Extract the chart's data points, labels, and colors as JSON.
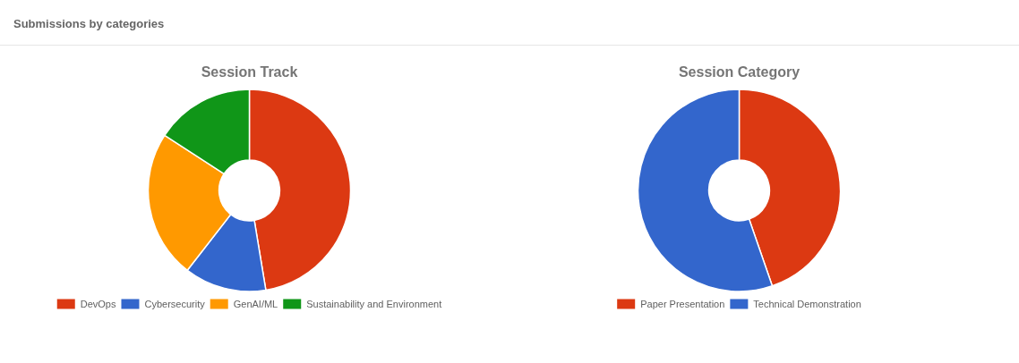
{
  "chart_data": [
    {
      "type": "donut",
      "title": "Session Track",
      "annotations": [
        "Submissions by categories"
      ],
      "categories": [
        "DevOps",
        "Cybersecurity",
        "GenAI/ML",
        "Sustainability and Environment"
      ],
      "values": [
        47.4,
        13.1,
        23.7,
        15.8
      ],
      "colors": [
        "#dc3912",
        "#3366cc",
        "#ff9900",
        "#109618"
      ],
      "legend": "bottom"
    },
    {
      "type": "donut",
      "title": "Session Category",
      "categories": [
        "Paper Presentation",
        "Technical Demonstration"
      ],
      "values": [
        44.7,
        55.3
      ],
      "colors": [
        "#dc3912",
        "#3366cc"
      ],
      "legend": "bottom"
    }
  ]
}
